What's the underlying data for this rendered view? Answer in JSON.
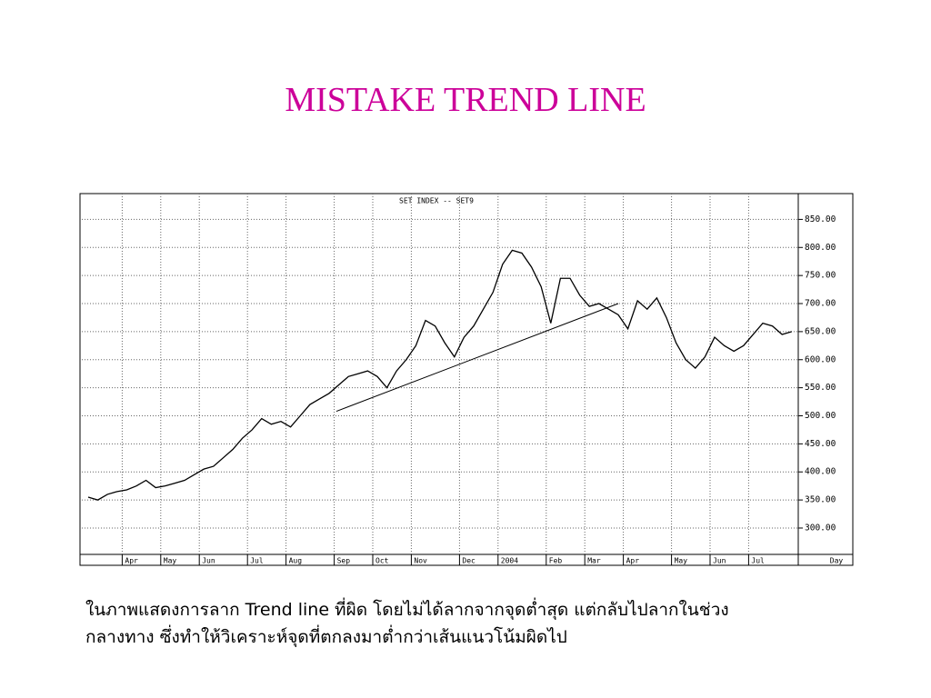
{
  "title": "MISTAKE TREND LINE",
  "chart_data": {
    "type": "line",
    "title": "SET INDEX -- SET9",
    "x_label": "Day",
    "categories": [
      null,
      null,
      null,
      null,
      "Apr",
      null,
      null,
      null,
      "May",
      null,
      null,
      null,
      "Jun",
      null,
      null,
      null,
      null,
      "Jul",
      null,
      null,
      null,
      "Aug",
      null,
      null,
      null,
      null,
      "Sep",
      null,
      null,
      null,
      "Oct",
      null,
      null,
      null,
      "Nov",
      null,
      null,
      null,
      null,
      "Dec",
      null,
      null,
      null,
      "2004",
      null,
      null,
      null,
      null,
      "Feb",
      null,
      null,
      null,
      "Mar",
      null,
      null,
      null,
      "Apr",
      null,
      null,
      null,
      null,
      "May",
      null,
      null,
      null,
      "Jun",
      null,
      null,
      null,
      "Jul",
      null,
      null,
      null,
      null
    ],
    "series": [
      {
        "name": "SET INDEX",
        "color": "#000000",
        "values": [
          355,
          350,
          360,
          365,
          368,
          375,
          385,
          372,
          375,
          380,
          385,
          395,
          405,
          410,
          425,
          440,
          460,
          475,
          495,
          485,
          490,
          480,
          500,
          520,
          530,
          540,
          555,
          570,
          575,
          580,
          570,
          550,
          580,
          600,
          625,
          670,
          660,
          630,
          605,
          640,
          660,
          690,
          720,
          770,
          795,
          790,
          765,
          730,
          665,
          745,
          745,
          715,
          695,
          700,
          690,
          680,
          655,
          705,
          690,
          710,
          675,
          630,
          600,
          585,
          605,
          640,
          625,
          615,
          625,
          645,
          665,
          660,
          645,
          650
        ]
      }
    ],
    "trend_line": {
      "x": [
        25.75,
        55
      ],
      "y": [
        508,
        700
      ]
    },
    "ylim": [
      253,
      896
    ],
    "yticks": [
      {
        "value": 300,
        "label": "300.00"
      },
      {
        "value": 350,
        "label": "350.00"
      },
      {
        "value": 400,
        "label": "400.00"
      },
      {
        "value": 450,
        "label": "450.00"
      },
      {
        "value": 500,
        "label": "500.00"
      },
      {
        "value": 550,
        "label": "550.00"
      },
      {
        "value": 600,
        "label": "600.00"
      },
      {
        "value": 650,
        "label": "650.00"
      },
      {
        "value": 700,
        "label": "700.00"
      },
      {
        "value": 750,
        "label": "750.00"
      },
      {
        "value": 800,
        "label": "800.00"
      },
      {
        "value": 850,
        "label": "850.00"
      }
    ],
    "grid": true
  },
  "caption": [
    "ในภาพแสดงการลาก Trend line ที่ผิด โดยไม่ได้ลากจากจุดต่ำสุด แต่กลับไปลากในช่วง",
    "กลางทาง ซึ่งทำให้วิเคราะห์จุดที่ตกลงมาต่ำกว่าเส้นแนวโน้มผิดไป"
  ]
}
